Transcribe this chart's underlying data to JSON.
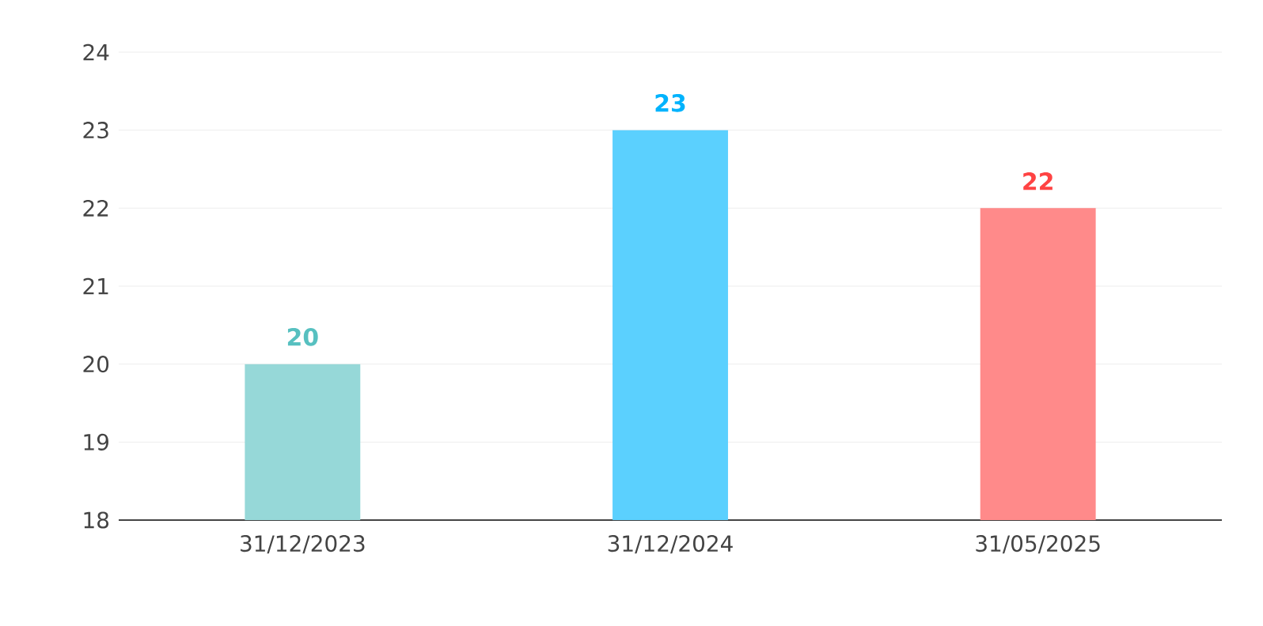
{
  "chart_data": {
    "type": "bar",
    "categories": [
      "31/12/2023",
      "31/12/2024",
      "31/05/2025"
    ],
    "values": [
      20,
      23,
      22
    ],
    "colors": [
      "#96d8d8",
      "#5bd0fe",
      "#ff8a8a"
    ],
    "ylim": [
      18,
      24
    ],
    "yticks": [
      18,
      19,
      20,
      21,
      22,
      23,
      24
    ],
    "grid": "y",
    "data_labels": true
  }
}
